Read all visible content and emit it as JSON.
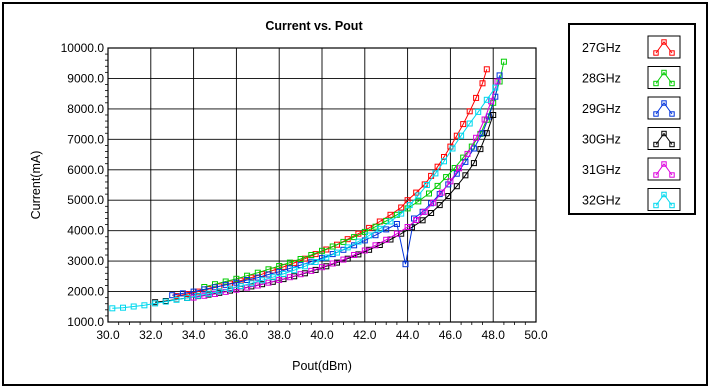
{
  "chart_data": {
    "type": "line",
    "title": "Current vs. Pout",
    "xlabel": "Pout(dBm)",
    "ylabel": "Current(mA)",
    "xlim": [
      30.0,
      50.0
    ],
    "ylim": [
      1000.0,
      10000.0
    ],
    "x_ticks": [
      "30.0",
      "32.0",
      "34.0",
      "36.0",
      "38.0",
      "40.0",
      "42.0",
      "44.0",
      "46.0",
      "48.0",
      "50.0"
    ],
    "y_ticks": [
      "1000.0",
      "2000.0",
      "3000.0",
      "4000.0",
      "5000.0",
      "6000.0",
      "7000.0",
      "8000.0",
      "9000.0",
      "10000.0"
    ],
    "grid": true,
    "legend_position": "right",
    "series": [
      {
        "name": "27GHz",
        "color": "#ff0000",
        "x": [
          33.2,
          33.7,
          34.2,
          34.7,
          35.2,
          35.7,
          36.2,
          36.7,
          37.2,
          37.7,
          38.2,
          38.7,
          39.2,
          39.7,
          40.2,
          40.7,
          41.2,
          41.7,
          42.2,
          42.7,
          43.2,
          43.7,
          44.0,
          44.4,
          44.8,
          45.1,
          45.4,
          45.7,
          46.0,
          46.3,
          46.6,
          46.9,
          47.2,
          47.5,
          47.7
        ],
        "y": [
          1850,
          1920,
          2000,
          2080,
          2170,
          2260,
          2360,
          2460,
          2570,
          2690,
          2810,
          2940,
          3080,
          3230,
          3380,
          3540,
          3720,
          3900,
          4090,
          4300,
          4520,
          4760,
          5000,
          5250,
          5520,
          5800,
          6100,
          6420,
          6760,
          7120,
          7500,
          7920,
          8360,
          8840,
          9300
        ]
      },
      {
        "name": "28GHz",
        "color": "#00cc00",
        "x": [
          34.5,
          35.0,
          35.5,
          36.0,
          36.5,
          37.0,
          37.5,
          38.0,
          38.5,
          39.0,
          39.5,
          40.0,
          40.5,
          41.0,
          41.5,
          42.0,
          42.5,
          43.0,
          43.5,
          44.0,
          44.5,
          45.0,
          45.4,
          45.8,
          46.2,
          46.6,
          47.0,
          47.4,
          47.7,
          48.0,
          48.3,
          48.5
        ],
        "y": [
          2150,
          2240,
          2330,
          2420,
          2520,
          2620,
          2730,
          2840,
          2950,
          3070,
          3200,
          3340,
          3480,
          3630,
          3790,
          3960,
          4130,
          4320,
          4520,
          4730,
          4960,
          5220,
          5470,
          5760,
          6060,
          6400,
          6760,
          7180,
          7640,
          8200,
          8900,
          9550
        ]
      },
      {
        "name": "29GHz",
        "color": "#0033dd",
        "x": [
          33.0,
          33.5,
          34.0,
          34.5,
          35.0,
          35.5,
          36.0,
          36.5,
          37.0,
          37.5,
          38.0,
          38.5,
          39.0,
          39.5,
          40.0,
          40.5,
          41.0,
          41.5,
          42.0,
          42.5,
          43.0,
          43.5,
          43.9,
          44.3,
          44.7,
          45.1,
          45.5,
          45.9,
          46.3,
          46.7,
          47.1,
          47.5,
          47.8,
          48.1,
          48.3
        ],
        "y": [
          1880,
          1940,
          2000,
          2070,
          2140,
          2220,
          2290,
          2380,
          2460,
          2560,
          2650,
          2760,
          2870,
          2980,
          3100,
          3230,
          3370,
          3520,
          3680,
          3850,
          4040,
          4220,
          2900,
          4400,
          4620,
          4900,
          5200,
          5520,
          5870,
          6260,
          6700,
          7200,
          7750,
          8400,
          9100
        ]
      },
      {
        "name": "30GHz",
        "color": "#000000",
        "x": [
          32.2,
          32.7,
          33.2,
          33.7,
          34.2,
          34.7,
          35.2,
          35.7,
          36.2,
          36.7,
          37.2,
          37.7,
          38.2,
          38.7,
          39.2,
          39.7,
          40.2,
          40.7,
          41.2,
          41.7,
          42.2,
          42.7,
          43.2,
          43.7,
          44.2,
          44.7,
          45.1,
          45.5,
          45.9,
          46.3,
          46.7,
          47.1,
          47.4,
          47.7,
          48.0
        ],
        "y": [
          1650,
          1690,
          1740,
          1790,
          1850,
          1900,
          1960,
          2030,
          2090,
          2170,
          2240,
          2320,
          2410,
          2500,
          2600,
          2710,
          2830,
          2950,
          3080,
          3220,
          3370,
          3530,
          3710,
          3900,
          4110,
          4340,
          4580,
          4840,
          5140,
          5460,
          5820,
          6220,
          6680,
          7200,
          7800
        ]
      },
      {
        "name": "31GHz",
        "color": "#dd00dd",
        "x": [
          34.0,
          34.5,
          35.0,
          35.5,
          36.0,
          36.5,
          37.0,
          37.5,
          38.0,
          38.5,
          39.0,
          39.5,
          40.0,
          40.5,
          41.0,
          41.5,
          42.0,
          42.5,
          43.0,
          43.5,
          44.0,
          44.4,
          44.8,
          45.2,
          45.6,
          46.0,
          46.4,
          46.8,
          47.2,
          47.6,
          47.9,
          48.2
        ],
        "y": [
          1800,
          1860,
          1920,
          1990,
          2060,
          2130,
          2200,
          2290,
          2380,
          2470,
          2570,
          2680,
          2800,
          2920,
          3050,
          3200,
          3350,
          3520,
          3700,
          3900,
          4120,
          4350,
          4620,
          4920,
          5250,
          5620,
          6050,
          6520,
          7050,
          7650,
          8250,
          8900
        ]
      },
      {
        "name": "32GHz",
        "color": "#00d8ee",
        "x": [
          30.2,
          30.7,
          31.2,
          31.7,
          32.2,
          32.7,
          33.2,
          33.7,
          34.2,
          34.7,
          35.2,
          35.7,
          36.2,
          36.7,
          37.2,
          37.7,
          38.2,
          38.7,
          39.2,
          39.7,
          40.2,
          40.7,
          41.2,
          41.7,
          42.2,
          42.7,
          43.2,
          43.7,
          44.1,
          44.5,
          44.9,
          45.3,
          45.7,
          46.1,
          46.5,
          46.9,
          47.3,
          47.7,
          48.1
        ],
        "y": [
          1450,
          1470,
          1510,
          1550,
          1610,
          1670,
          1730,
          1790,
          1860,
          1930,
          2010,
          2090,
          2180,
          2270,
          2370,
          2470,
          2580,
          2700,
          2830,
          2970,
          3120,
          3280,
          3450,
          3640,
          3840,
          4060,
          4300,
          4560,
          4840,
          5160,
          5500,
          5880,
          6280,
          6700,
          7120,
          7520,
          7900,
          8300,
          8700
        ]
      }
    ]
  }
}
